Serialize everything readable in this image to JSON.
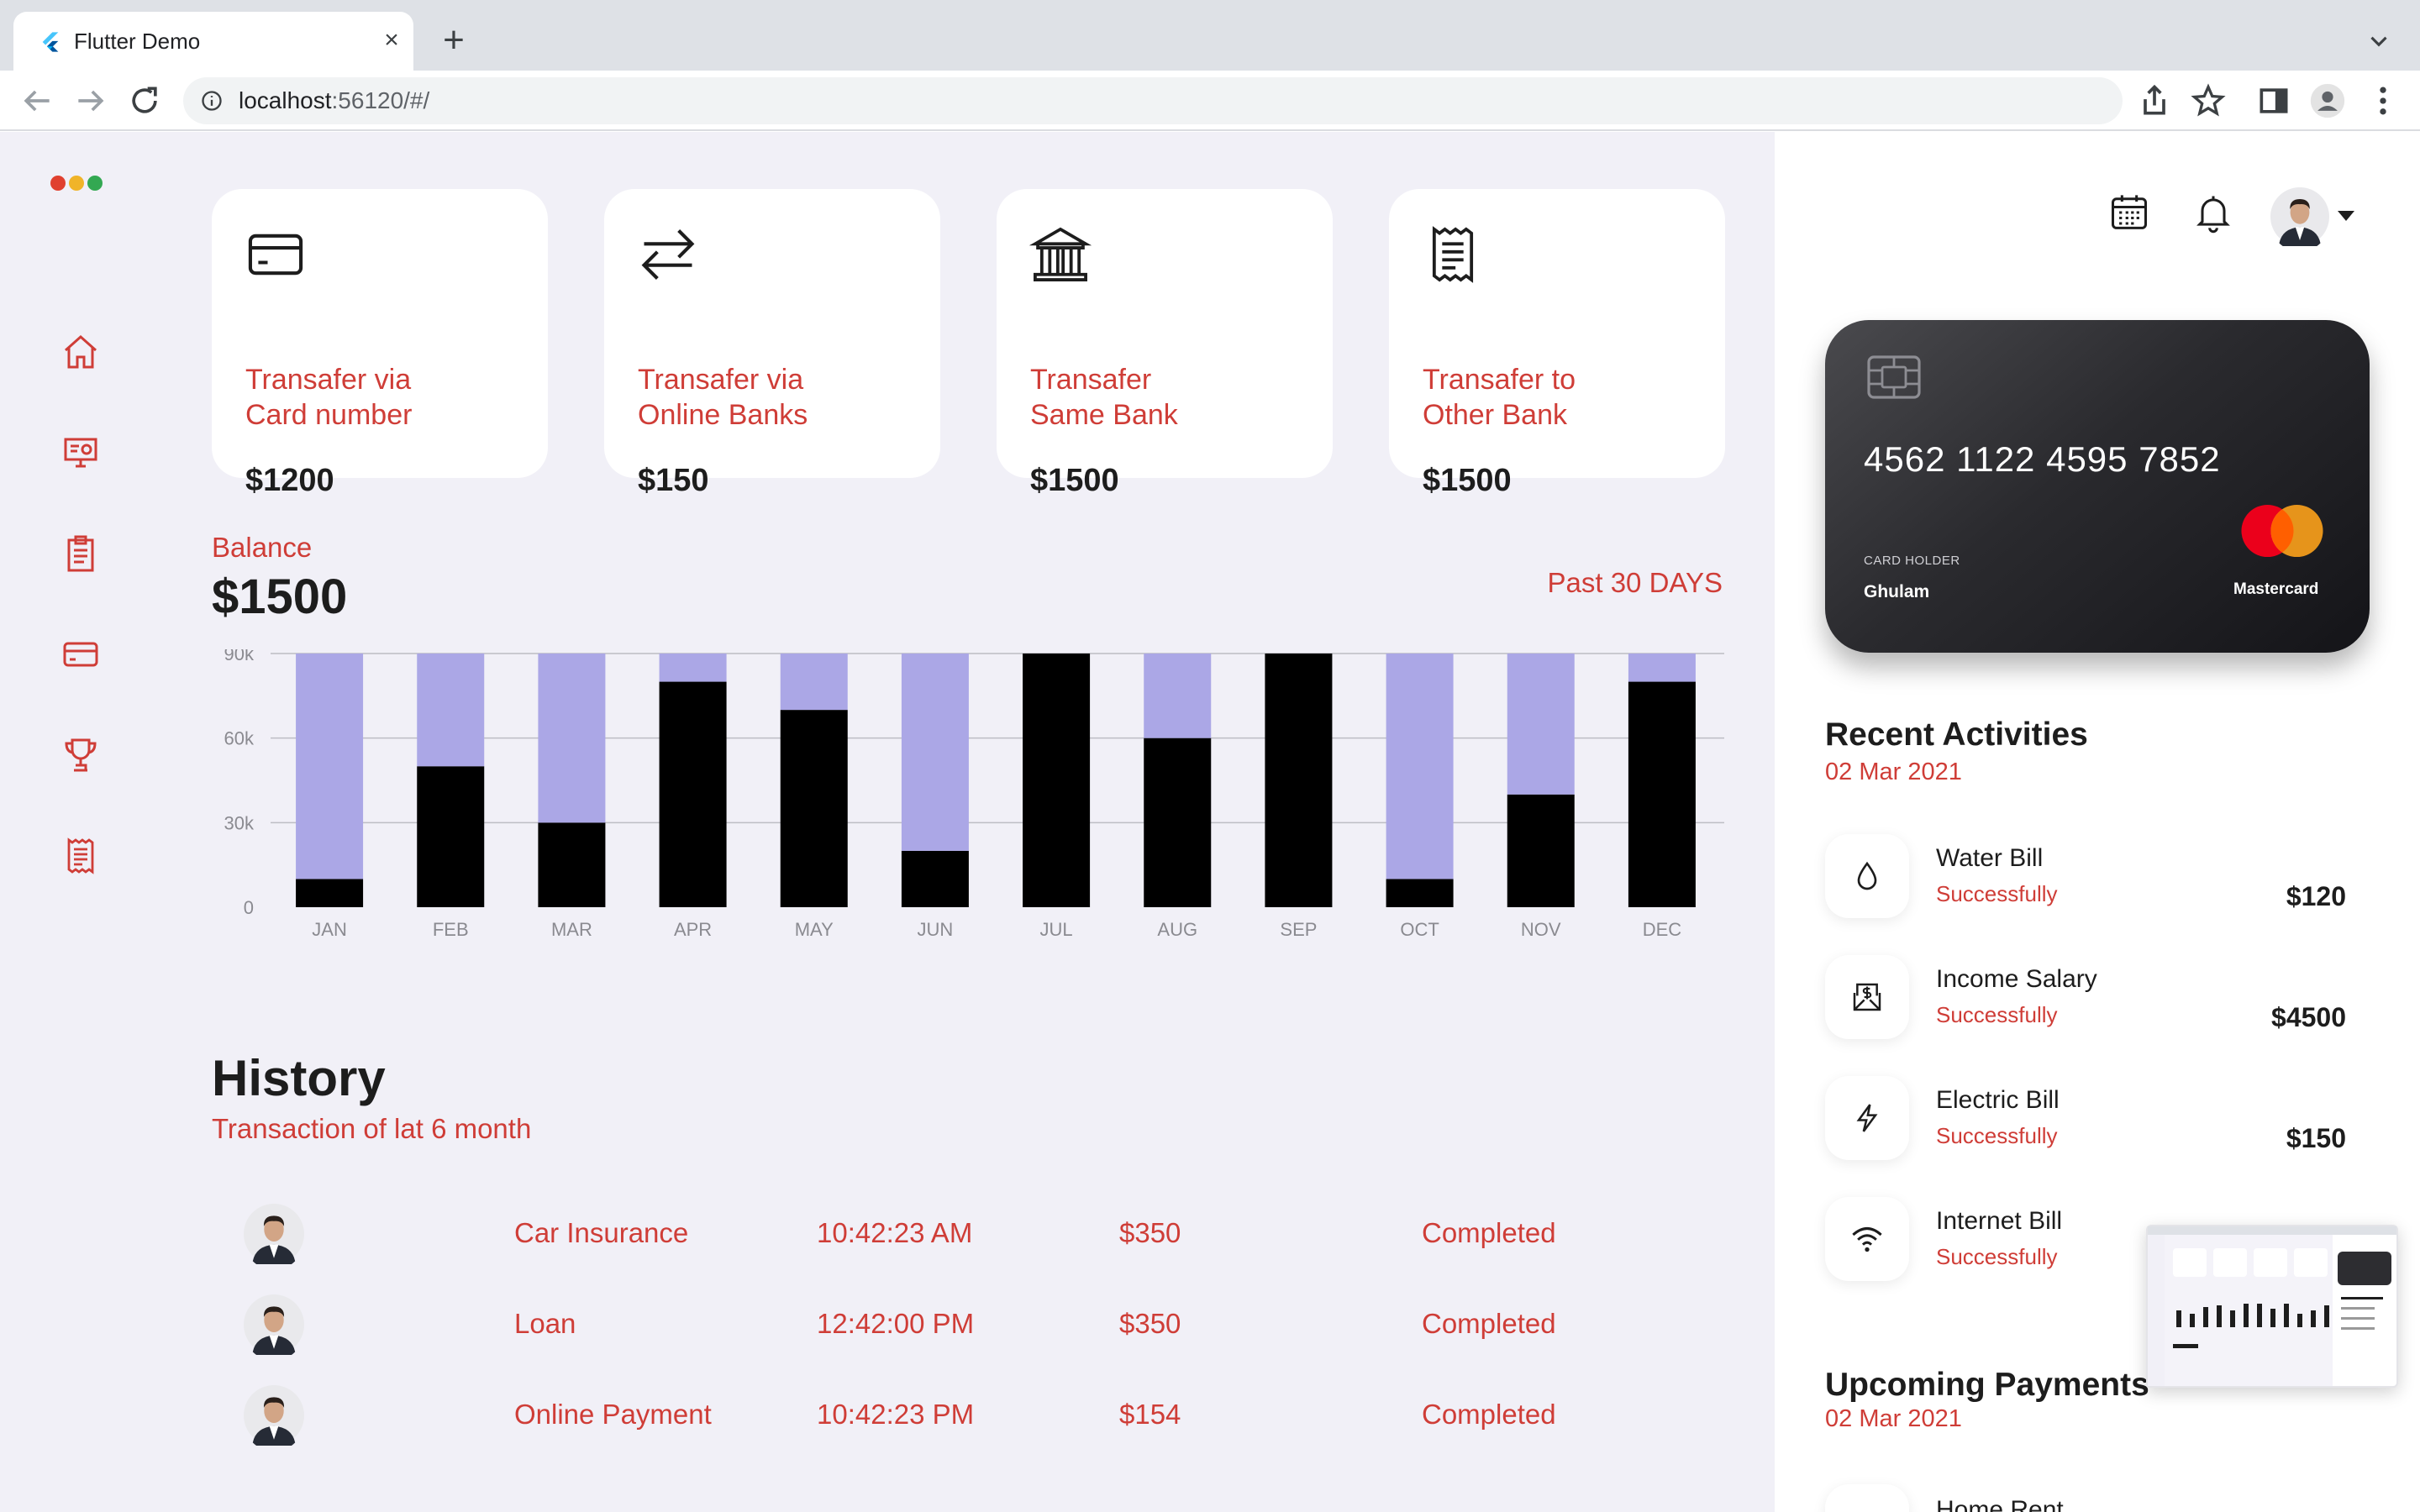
{
  "browser": {
    "tab_title": "Flutter Demo",
    "close_symbol": "×",
    "new_tab_symbol": "+",
    "url_host": "localhost",
    "url_rest": ":56120/#/"
  },
  "sidebar": {
    "window_dots": [
      "#e0402f",
      "#f0b429",
      "#33a852"
    ],
    "items": [
      {
        "icon": "home-icon"
      },
      {
        "icon": "dashboard-icon"
      },
      {
        "icon": "clipboard-icon"
      },
      {
        "icon": "card-icon"
      },
      {
        "icon": "trophy-icon"
      },
      {
        "icon": "receipt-icon"
      }
    ],
    "accent": "#cf3d37"
  },
  "transfers": [
    {
      "icon": "card-icon",
      "label": "Transafer via\nCard number",
      "amount": "$1200"
    },
    {
      "icon": "swap-arrows-icon",
      "label": "Transafer via\nOnline Banks",
      "amount": "$150"
    },
    {
      "icon": "bank-icon",
      "label": "Transafer\nSame Bank",
      "amount": "$1500"
    },
    {
      "icon": "receipt-icon",
      "label": "Transafer to\nOther Bank",
      "amount": "$1500"
    }
  ],
  "balance": {
    "label": "Balance",
    "amount": "$1500",
    "period": "Past 30 DAYS"
  },
  "chart_data": {
    "type": "bar",
    "stacked": true,
    "categories": [
      "JAN",
      "FEB",
      "MAR",
      "APR",
      "MAY",
      "JUN",
      "JUL",
      "AUG",
      "SEP",
      "OCT",
      "NOV",
      "DEC"
    ],
    "series": [
      {
        "values": [
          10000,
          50000,
          30000,
          80000,
          70000,
          20000,
          90000,
          60000,
          90000,
          10000,
          40000,
          80000
        ],
        "color": "#000000"
      },
      {
        "values": [
          80000,
          40000,
          60000,
          10000,
          20000,
          70000,
          0,
          30000,
          0,
          80000,
          50000,
          10000
        ],
        "color": "#aba7e6"
      }
    ],
    "yticks": [
      "0",
      "30k",
      "60k",
      "90k"
    ],
    "ylim": [
      0,
      90000
    ],
    "grid": true
  },
  "history": {
    "title": "History",
    "subtitle": "Transaction of lat 6 month",
    "rows": [
      {
        "name": "Car Insurance",
        "time": "10:42:23 AM",
        "amount": "$350",
        "status": "Completed"
      },
      {
        "name": "Loan",
        "time": "12:42:00 PM",
        "amount": "$350",
        "status": "Completed"
      },
      {
        "name": "Online Payment",
        "time": "10:42:23 PM",
        "amount": "$154",
        "status": "Completed"
      }
    ]
  },
  "card": {
    "number": "4562 1122 4595 7852",
    "holder_label": "CARD HOLDER",
    "holder_name": "Ghulam",
    "brand": "Mastercard"
  },
  "recent": {
    "title": "Recent Activities",
    "date": "02 Mar 2021",
    "items": [
      {
        "icon": "water-drop-icon",
        "name": "Water Bill",
        "status": "Successfully",
        "amount": "$120"
      },
      {
        "icon": "salary-envelope-icon",
        "name": "Income Salary",
        "status": "Successfully",
        "amount": "$4500"
      },
      {
        "icon": "lightning-icon",
        "name": "Electric Bill",
        "status": "Successfully",
        "amount": "$150"
      },
      {
        "icon": "wifi-icon",
        "name": "Internet Bill",
        "status": "Successfully",
        "amount": ""
      }
    ]
  },
  "upcoming": {
    "title": "Upcoming Payments",
    "date": "02 Mar 2021",
    "item_name": "Home Rent"
  }
}
